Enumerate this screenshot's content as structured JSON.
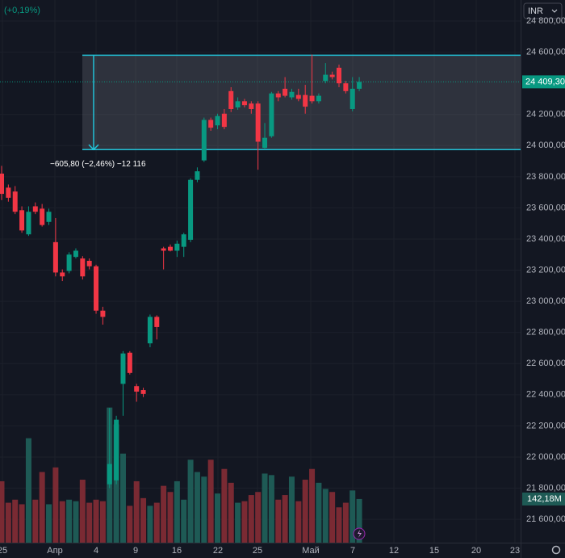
{
  "header": {
    "change": "(+0,19%)",
    "currency": "INR"
  },
  "chart_data": {
    "type": "candlestick",
    "open": [
      23820,
      23730,
      23705,
      23585,
      23430,
      23610,
      23595,
      23510,
      23380,
      23185,
      23195,
      23285,
      23275,
      23260,
      23225,
      22940,
      21825,
      21850,
      22470,
      22670,
      22455,
      22430,
      22730,
      22900,
      23340,
      23350,
      23325,
      23350,
      23395,
      23780,
      23905,
      24165,
      24130,
      24205,
      24350,
      24245,
      24285,
      24270,
      24270,
      23985,
      24060,
      24335,
      24365,
      24310,
      24325,
      24325,
      24320,
      24285,
      24415,
      24455,
      24500,
      24400,
      24235,
      24365
    ],
    "high": [
      23870,
      23750,
      23740,
      23610,
      23610,
      23635,
      23625,
      23595,
      23535,
      23205,
      23315,
      23340,
      23290,
      23275,
      23235,
      22965,
      22315,
      22265,
      22680,
      22680,
      22470,
      22445,
      22915,
      22910,
      23350,
      23365,
      23390,
      23440,
      23790,
      23860,
      24180,
      24180,
      24205,
      24235,
      24375,
      24310,
      24300,
      24285,
      24285,
      24145,
      24345,
      24350,
      24440,
      24365,
      24365,
      24390,
      24585,
      24335,
      24530,
      24475,
      24520,
      24415,
      24440,
      24440
    ],
    "low": [
      23650,
      23640,
      23560,
      23440,
      23420,
      23560,
      23480,
      23490,
      23160,
      23130,
      23180,
      23275,
      23140,
      23205,
      22920,
      22850,
      21800,
      21825,
      22265,
      22530,
      22355,
      22385,
      22705,
      22755,
      23205,
      23320,
      23285,
      23285,
      23380,
      23765,
      23895,
      24095,
      24105,
      24105,
      24215,
      24230,
      24245,
      24205,
      23845,
      23975,
      24050,
      24285,
      24310,
      24295,
      24285,
      24205,
      24270,
      24270,
      24400,
      24425,
      24375,
      24335,
      24220,
      24350
    ],
    "close": [
      23690,
      23665,
      23575,
      23455,
      23575,
      23575,
      23490,
      23575,
      23185,
      23160,
      23300,
      23325,
      23160,
      23225,
      22940,
      22900,
      21955,
      22240,
      22665,
      22540,
      22420,
      22405,
      22900,
      22835,
      23325,
      23325,
      23370,
      23430,
      23780,
      23835,
      24165,
      24115,
      24190,
      24120,
      24235,
      24285,
      24260,
      24235,
      24025,
      24050,
      24335,
      24310,
      24320,
      24345,
      24300,
      24250,
      24285,
      24320,
      24455,
      24440,
      24400,
      24350,
      24365,
      24409.3
    ],
    "volume": [
      200,
      130,
      140,
      125,
      340,
      140,
      230,
      125,
      245,
      135,
      140,
      135,
      205,
      130,
      140,
      135,
      440,
      385,
      290,
      120,
      200,
      145,
      120,
      130,
      185,
      165,
      200,
      140,
      270,
      230,
      215,
      270,
      160,
      240,
      195,
      130,
      135,
      155,
      165,
      225,
      220,
      140,
      155,
      215,
      135,
      205,
      240,
      195,
      175,
      165,
      115,
      130,
      170,
      142.18
    ],
    "up_color": "#089981",
    "down_color": "#f23645",
    "volume_up_color": "#1e5a55",
    "volume_down_color": "#7a2a33",
    "ylim": [
      21450,
      24935
    ],
    "volume_ylim": [
      0,
      1767
    ],
    "yticks": [
      {
        "value": 24800,
        "label": "24 800,00"
      },
      {
        "value": 24600,
        "label": "24 600,00"
      },
      {
        "value": 24200,
        "label": "24 200,00"
      },
      {
        "value": 24000,
        "label": "24 000,00"
      },
      {
        "value": 23800,
        "label": "23 800,00"
      },
      {
        "value": 23600,
        "label": "23 600,00"
      },
      {
        "value": 23400,
        "label": "23 400,00"
      },
      {
        "value": 23200,
        "label": "23 200,00"
      },
      {
        "value": 23000,
        "label": "23 000,00"
      },
      {
        "value": 22800,
        "label": "22 800,00"
      },
      {
        "value": 22600,
        "label": "22 600,00"
      },
      {
        "value": 22400,
        "label": "22 400,00"
      },
      {
        "value": 22200,
        "label": "22 200,00"
      },
      {
        "value": 22000,
        "label": "22 000,00"
      },
      {
        "value": 21800,
        "label": "21 800,00"
      },
      {
        "value": 21600,
        "label": "21 600,00"
      }
    ],
    "x_labels": [
      "25",
      "Апр",
      "4",
      "9",
      "16",
      "22",
      "25",
      "Май",
      "7",
      "12",
      "15",
      "20",
      "23"
    ],
    "last_price": {
      "value": 24409.3,
      "label": "24 409,30"
    },
    "last_volume_label": "142,18M",
    "measure": {
      "top": 24580.3,
      "bottom": 23974.5,
      "label": "−605,80 (−2,46%) −12 116"
    }
  }
}
